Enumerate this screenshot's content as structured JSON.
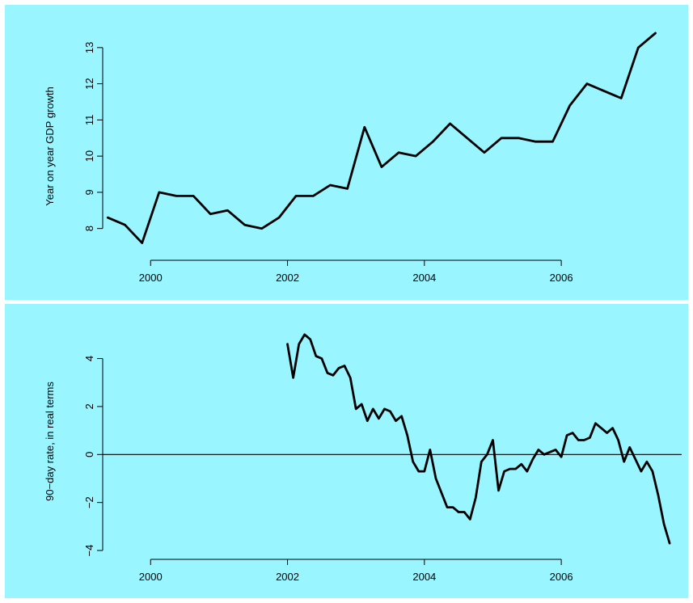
{
  "colors": {
    "panel_background": "#99f5ff",
    "line": "#000000"
  },
  "chart_data": [
    {
      "type": "line",
      "title": "",
      "xlabel": "",
      "ylabel": "Year on year GDP growth",
      "xlim": [
        1999.3,
        2007.7
      ],
      "ylim": [
        7.3,
        13.6
      ],
      "xticks": [
        2000,
        2002,
        2004,
        2006
      ],
      "yticks": [
        8,
        9,
        10,
        11,
        12,
        13
      ],
      "grid": false,
      "series": [
        {
          "x": [
            1999.375,
            1999.625,
            1999.875,
            2000.125,
            2000.375,
            2000.625,
            2000.875,
            2001.125,
            2001.375,
            2001.625,
            2001.875,
            2002.125,
            2002.375,
            2002.625,
            2002.875,
            2003.125,
            2003.375,
            2003.625,
            2003.875,
            2004.125,
            2004.375,
            2004.625,
            2004.875,
            2005.125,
            2005.375,
            2005.625,
            2005.875,
            2006.125,
            2006.375,
            2006.625,
            2006.875,
            2007.125,
            2007.375
          ],
          "values": [
            8.3,
            8.1,
            7.6,
            9.0,
            8.9,
            8.9,
            8.4,
            8.5,
            8.1,
            8.0,
            8.3,
            8.9,
            8.9,
            9.2,
            9.1,
            10.8,
            9.7,
            10.1,
            10.0,
            10.4,
            10.9,
            10.5,
            10.1,
            10.5,
            10.5,
            10.4,
            10.4,
            11.4,
            12.0,
            11.8,
            11.6,
            13.0,
            13.4
          ]
        }
      ]
    },
    {
      "type": "line",
      "title": "",
      "xlabel": "",
      "ylabel": "90−day rate, in real terms",
      "xlim": [
        1999.3,
        2007.7
      ],
      "ylim": [
        -4.1,
        5.4
      ],
      "xticks": [
        2000,
        2002,
        2004,
        2006
      ],
      "yticks": [
        -4,
        -2,
        0,
        2,
        4
      ],
      "ytick_labels": [
        "−4",
        "−2",
        "0",
        "2",
        "4"
      ],
      "reference_line_y": 0,
      "grid": false,
      "series": [
        {
          "x": [
            2002.0,
            2002.083,
            2002.167,
            2002.25,
            2002.333,
            2002.417,
            2002.5,
            2002.583,
            2002.667,
            2002.75,
            2002.833,
            2002.917,
            2003.0,
            2003.083,
            2003.167,
            2003.25,
            2003.333,
            2003.417,
            2003.5,
            2003.583,
            2003.667,
            2003.75,
            2003.833,
            2003.917,
            2004.0,
            2004.083,
            2004.167,
            2004.25,
            2004.333,
            2004.417,
            2004.5,
            2004.583,
            2004.667,
            2004.75,
            2004.833,
            2004.917,
            2005.0,
            2005.083,
            2005.167,
            2005.25,
            2005.333,
            2005.417,
            2005.5,
            2005.583,
            2005.667,
            2005.75,
            2005.833,
            2005.917,
            2006.0,
            2006.083,
            2006.167,
            2006.25,
            2006.333,
            2006.417,
            2006.5,
            2006.583,
            2006.667,
            2006.75,
            2006.833,
            2006.917,
            2007.0,
            2007.083,
            2007.167,
            2007.25,
            2007.333,
            2007.417,
            2007.5,
            2007.583
          ],
          "values": [
            4.6,
            3.2,
            4.6,
            5.0,
            4.8,
            4.1,
            4.0,
            3.4,
            3.3,
            3.6,
            3.7,
            3.2,
            1.9,
            2.1,
            1.4,
            1.9,
            1.5,
            1.9,
            1.8,
            1.4,
            1.6,
            0.8,
            -0.3,
            -0.7,
            -0.7,
            0.2,
            -1.0,
            -1.6,
            -2.2,
            -2.2,
            -2.4,
            -2.4,
            -2.7,
            -1.8,
            -0.3,
            0.0,
            0.6,
            -1.5,
            -0.7,
            -0.6,
            -0.6,
            -0.4,
            -0.7,
            -0.2,
            0.2,
            0.0,
            0.1,
            0.2,
            -0.1,
            0.8,
            0.9,
            0.6,
            0.6,
            0.7,
            1.3,
            1.1,
            0.9,
            1.1,
            0.6,
            -0.3,
            0.3,
            -0.2,
            -0.7,
            -0.3,
            -0.7,
            -1.7,
            -2.9,
            -3.7
          ]
        }
      ]
    }
  ]
}
